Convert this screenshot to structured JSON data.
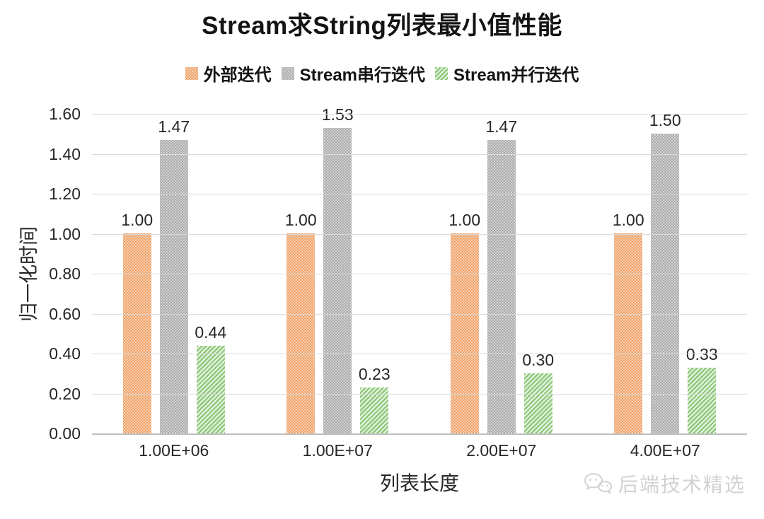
{
  "title": "Stream求String列表最小值性能",
  "chart_data": {
    "type": "bar",
    "title": "Stream求String列表最小值性能",
    "categories": [
      "1.00E+06",
      "1.00E+07",
      "2.00E+07",
      "4.00E+07"
    ],
    "series": [
      {
        "name": "外部迭代",
        "color": "#EE9E62",
        "pattern": "dots",
        "values": [
          1.0,
          1.0,
          1.0,
          1.0
        ]
      },
      {
        "name": "Stream串行迭代",
        "color": "#A6A6A6",
        "pattern": "dots",
        "values": [
          1.47,
          1.53,
          1.47,
          1.5
        ]
      },
      {
        "name": "Stream并行迭代",
        "color": "#8FC97C",
        "pattern": "diagonal",
        "values": [
          0.44,
          0.23,
          0.3,
          0.33
        ]
      }
    ],
    "xlabel": "列表长度",
    "ylabel": "归一化时间",
    "ylim": [
      0,
      1.6
    ],
    "ytick_step": 0.2,
    "value_label_decimals": 2,
    "legend_position": "top",
    "grid": true,
    "grid_color": "#D9D9D9",
    "axis_line_color": "#BFBFBF",
    "text_color": "#262626"
  },
  "watermark": {
    "label": "后端技术精选",
    "icon": "wechat-chat-bubbles-icon",
    "color": "#D2D2D2"
  }
}
